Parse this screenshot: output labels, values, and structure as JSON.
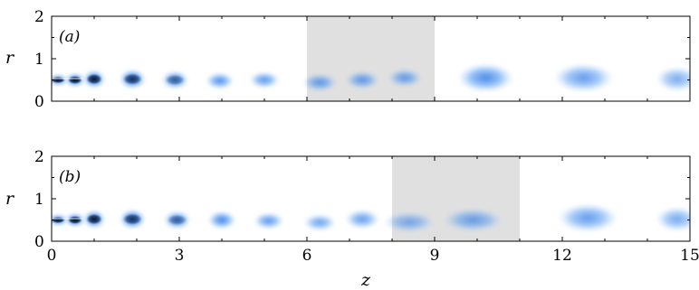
{
  "chart_data": [
    {
      "type": "heatmap",
      "panel_label": "(a)",
      "xlim": [
        0,
        15
      ],
      "ylim": [
        0,
        2
      ],
      "ylabel": "r",
      "xlabel": "",
      "y_ticks": [
        "0",
        "1",
        "2"
      ],
      "x_ticks": [],
      "shaded_region": {
        "z_start": 6,
        "z_end": 9,
        "color": "#e0e0e0"
      },
      "structures": [
        {
          "z": 0.15,
          "r": 0.5,
          "length": 0.45,
          "height": 0.16,
          "intensity": 1.0
        },
        {
          "z": 0.55,
          "r": 0.5,
          "length": 0.45,
          "height": 0.2,
          "intensity": 1.0
        },
        {
          "z": 1.0,
          "r": 0.52,
          "length": 0.5,
          "height": 0.26,
          "intensity": 0.95
        },
        {
          "z": 1.9,
          "r": 0.52,
          "length": 0.6,
          "height": 0.28,
          "intensity": 0.85
        },
        {
          "z": 2.9,
          "r": 0.5,
          "length": 0.62,
          "height": 0.26,
          "intensity": 0.72
        },
        {
          "z": 3.95,
          "r": 0.48,
          "length": 0.65,
          "height": 0.24,
          "intensity": 0.6
        },
        {
          "z": 5.0,
          "r": 0.5,
          "length": 0.7,
          "height": 0.24,
          "intensity": 0.55
        },
        {
          "z": 6.3,
          "r": 0.44,
          "length": 0.8,
          "height": 0.26,
          "intensity": 0.5
        },
        {
          "z": 7.3,
          "r": 0.5,
          "length": 0.8,
          "height": 0.26,
          "intensity": 0.5
        },
        {
          "z": 8.3,
          "r": 0.55,
          "length": 0.8,
          "height": 0.26,
          "intensity": 0.48
        },
        {
          "z": 10.2,
          "r": 0.55,
          "length": 1.3,
          "height": 0.42,
          "intensity": 0.6
        },
        {
          "z": 12.5,
          "r": 0.55,
          "length": 1.4,
          "height": 0.42,
          "intensity": 0.5
        },
        {
          "z": 14.7,
          "r": 0.52,
          "length": 1.0,
          "height": 0.36,
          "intensity": 0.4
        }
      ]
    },
    {
      "type": "heatmap",
      "panel_label": "(b)",
      "xlim": [
        0,
        15
      ],
      "ylim": [
        0,
        2
      ],
      "ylabel": "r",
      "xlabel": "z",
      "y_ticks": [
        "0",
        "1",
        "2"
      ],
      "x_ticks": [
        "0",
        "3",
        "6",
        "9",
        "12",
        "15"
      ],
      "shaded_region": {
        "z_start": 8,
        "z_end": 11,
        "color": "#e0e0e0"
      },
      "structures": [
        {
          "z": 0.15,
          "r": 0.5,
          "length": 0.45,
          "height": 0.16,
          "intensity": 1.0
        },
        {
          "z": 0.55,
          "r": 0.5,
          "length": 0.45,
          "height": 0.2,
          "intensity": 1.0
        },
        {
          "z": 1.0,
          "r": 0.52,
          "length": 0.5,
          "height": 0.26,
          "intensity": 0.95
        },
        {
          "z": 1.9,
          "r": 0.52,
          "length": 0.6,
          "height": 0.28,
          "intensity": 0.85
        },
        {
          "z": 2.95,
          "r": 0.5,
          "length": 0.62,
          "height": 0.26,
          "intensity": 0.72
        },
        {
          "z": 4.0,
          "r": 0.5,
          "length": 0.65,
          "height": 0.26,
          "intensity": 0.65
        },
        {
          "z": 5.1,
          "r": 0.48,
          "length": 0.7,
          "height": 0.24,
          "intensity": 0.55
        },
        {
          "z": 6.3,
          "r": 0.44,
          "length": 0.75,
          "height": 0.24,
          "intensity": 0.48
        },
        {
          "z": 7.3,
          "r": 0.52,
          "length": 0.8,
          "height": 0.28,
          "intensity": 0.5
        },
        {
          "z": 8.4,
          "r": 0.45,
          "length": 1.2,
          "height": 0.3,
          "intensity": 0.38
        },
        {
          "z": 9.9,
          "r": 0.5,
          "length": 1.4,
          "height": 0.34,
          "intensity": 0.45
        },
        {
          "z": 12.6,
          "r": 0.55,
          "length": 1.4,
          "height": 0.42,
          "intensity": 0.5
        },
        {
          "z": 14.7,
          "r": 0.52,
          "length": 1.0,
          "height": 0.36,
          "intensity": 0.42
        }
      ]
    }
  ]
}
